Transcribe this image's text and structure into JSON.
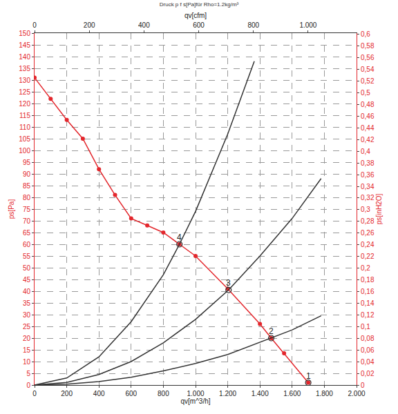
{
  "chart_data": {
    "type": "line",
    "title": "Druck p f s[Pa]für Rho=1.2kg/m³",
    "x_label": "qv[m^3/h]",
    "x2_label": "qv[cfm]",
    "y_label": "ps[Pa]",
    "y2_label": "ps[inH2O]",
    "grid": true,
    "xlim": [
      0,
      2000
    ],
    "xticks": [
      0,
      200,
      400,
      600,
      800,
      {
        "value": 1000,
        "label": "1.000"
      },
      {
        "value": 1200,
        "label": "1.200"
      },
      {
        "value": 1400,
        "label": "1.400"
      },
      {
        "value": 1600,
        "label": "1.600"
      },
      {
        "value": 1800,
        "label": "1.800"
      },
      {
        "value": 2000,
        "label": "2.000"
      }
    ],
    "x2lim": [
      0,
      1177
    ],
    "x2ticks": [
      0,
      200,
      400,
      600,
      800,
      {
        "value": 1000,
        "label": "1.000"
      }
    ],
    "ylim": [
      0,
      150
    ],
    "yticks": [
      0,
      5,
      10,
      15,
      20,
      25,
      30,
      35,
      40,
      45,
      50,
      55,
      60,
      65,
      70,
      75,
      80,
      85,
      90,
      95,
      100,
      105,
      110,
      115,
      120,
      125,
      130,
      135,
      140,
      145,
      150
    ],
    "y2lim": [
      0,
      0.6022
    ],
    "y2ticks": [
      0,
      {
        "value": 0.02,
        "label": "0,02"
      },
      {
        "value": 0.04,
        "label": "0,04"
      },
      {
        "value": 0.06,
        "label": "0,06"
      },
      {
        "value": 0.08,
        "label": "0,08"
      },
      {
        "value": 0.1,
        "label": "0,1"
      },
      {
        "value": 0.12,
        "label": "0,12"
      },
      {
        "value": 0.14,
        "label": "0,14"
      },
      {
        "value": 0.16,
        "label": "0,16"
      },
      {
        "value": 0.18,
        "label": "0,18"
      },
      {
        "value": 0.2,
        "label": "0,2"
      },
      {
        "value": 0.22,
        "label": "0,22"
      },
      {
        "value": 0.24,
        "label": "0,24"
      },
      {
        "value": 0.26,
        "label": "0,26"
      },
      {
        "value": 0.28,
        "label": "0,28"
      },
      {
        "value": 0.3,
        "label": "0,3"
      },
      {
        "value": 0.32,
        "label": "0,32"
      },
      {
        "value": 0.34,
        "label": "0,34"
      },
      {
        "value": 0.36,
        "label": "0,36"
      },
      {
        "value": 0.38,
        "label": "0,38"
      },
      {
        "value": 0.4,
        "label": "0,4"
      },
      {
        "value": 0.42,
        "label": "0,42"
      },
      {
        "value": 0.44,
        "label": "0,44"
      },
      {
        "value": 0.46,
        "label": "0,46"
      },
      {
        "value": 0.48,
        "label": "0,48"
      },
      {
        "value": 0.5,
        "label": "0,5"
      },
      {
        "value": 0.52,
        "label": "0,52"
      },
      {
        "value": 0.54,
        "label": "0,54"
      },
      {
        "value": 0.56,
        "label": "0,56"
      },
      {
        "value": 0.58,
        "label": "0,58"
      },
      {
        "value": 0.6,
        "label": "0,6"
      }
    ],
    "series": [
      {
        "color": "#e3262c",
        "marker": "circle",
        "line_style": "solid",
        "x": [
          0,
          100,
          200,
          300,
          400,
          500,
          600,
          700,
          800,
          900,
          1000,
          1200,
          1400,
          1470,
          1550,
          1700
        ],
        "values": [
          131,
          122,
          113,
          105,
          92,
          81,
          71,
          68,
          65,
          60,
          55,
          41,
          26,
          20,
          13.5,
          1
        ]
      },
      {
        "color": "#333333",
        "marker": "none",
        "line_style": "solid",
        "x": [
          0,
          200,
          400,
          600,
          800,
          900,
          1000,
          1200,
          1365
        ],
        "values": [
          0,
          3,
          12,
          27,
          47,
          60,
          74,
          107,
          138
        ]
      },
      {
        "color": "#333333",
        "marker": "none",
        "line_style": "solid",
        "x": [
          0,
          200,
          400,
          600,
          800,
          1000,
          1205,
          1400,
          1600,
          1780
        ],
        "values": [
          0,
          1.1,
          4.5,
          10,
          18,
          28,
          40.5,
          55,
          71,
          88
        ]
      },
      {
        "color": "#333333",
        "marker": "none",
        "line_style": "solid",
        "x": [
          0,
          200,
          400,
          600,
          800,
          1000,
          1200,
          1470,
          1600,
          1780
        ],
        "values": [
          0,
          0.4,
          1.5,
          3.3,
          6,
          9.2,
          13,
          20,
          23.5,
          29.5
        ]
      }
    ],
    "points": [
      {
        "label": "4",
        "x": 900,
        "y": 60
      },
      {
        "label": "3",
        "x": 1205,
        "y": 40.5
      },
      {
        "label": "2",
        "x": 1470,
        "y": 20
      },
      {
        "label": "1",
        "x": 1700,
        "y": 1
      }
    ]
  }
}
